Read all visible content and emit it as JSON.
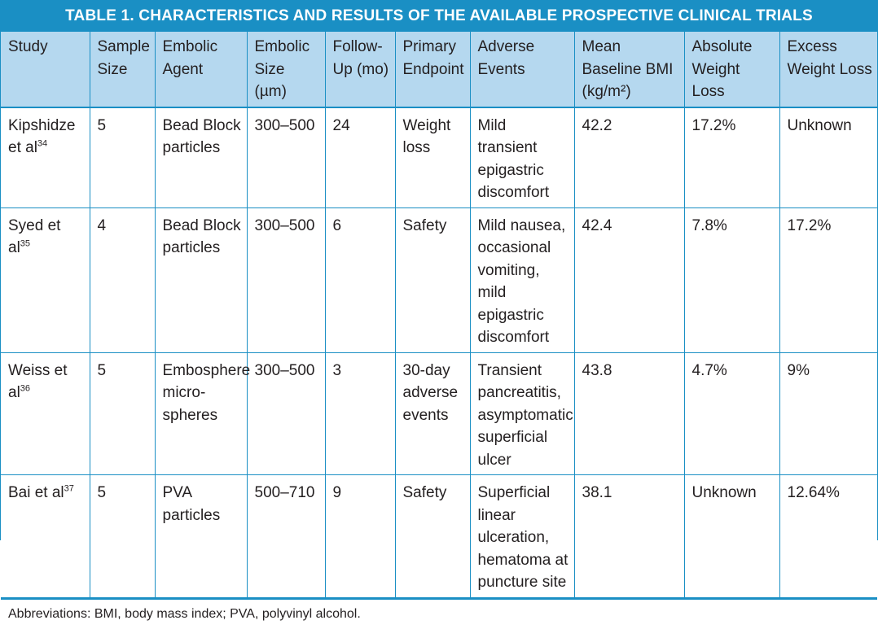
{
  "table": {
    "title": "TABLE 1.  CHARACTERISTICS AND RESULTS OF THE AVAILABLE PROSPECTIVE CLINICAL TRIALS",
    "headers": [
      "Study",
      "Sample Size",
      "Embolic Agent",
      "Embolic Size (µm)",
      "Follow-Up (mo)",
      "Primary Endpoint",
      "Adverse Events",
      "Mean Baseline BMI (kg/m²)",
      "Absolute Weight Loss",
      "Excess Weight Loss"
    ],
    "rows": [
      {
        "study": "Kipshidze et al",
        "ref": "34",
        "sample_size": "5",
        "embolic_agent": "Bead Block particles",
        "embolic_size": "300–500",
        "follow_up": "24",
        "primary_endpoint": "Weight loss",
        "adverse_events": "Mild transient epigastric discomfort",
        "mean_bmi": "42.2",
        "absolute_weight_loss": "17.2%",
        "excess_weight_loss": "Unknown"
      },
      {
        "study": "Syed et al",
        "ref": "35",
        "sample_size": "4",
        "embolic_agent": "Bead Block particles",
        "embolic_size": "300–500",
        "follow_up": "6",
        "primary_endpoint": "Safety",
        "adverse_events": "Mild nausea, occasional vomiting, mild epigastric discomfort",
        "mean_bmi": "42.4",
        "absolute_weight_loss": "7.8%",
        "excess_weight_loss": "17.2%"
      },
      {
        "study": "Weiss et al",
        "ref": "36",
        "sample_size": "5",
        "embolic_agent": "Embosphere micro-spheres",
        "embolic_size": "300–500",
        "follow_up": "3",
        "primary_endpoint": "30-day adverse events",
        "adverse_events": "Transient pancreatitis, asymptomatic superficial ulcer",
        "mean_bmi": "43.8",
        "absolute_weight_loss": "4.7%",
        "excess_weight_loss": "9%"
      },
      {
        "study": "Bai et al",
        "ref": "37",
        "sample_size": "5",
        "embolic_agent": "PVA particles",
        "embolic_size": "500–710",
        "follow_up": "9",
        "primary_endpoint": "Safety",
        "adverse_events": "Superficial linear ulceration, hematoma at puncture site",
        "mean_bmi": "38.1",
        "absolute_weight_loss": "Unknown",
        "excess_weight_loss": "12.64%"
      }
    ],
    "footnote": "Abbreviations: BMI, body mass index; PVA, polyvinyl alcohol."
  },
  "colors": {
    "accent": "#1a8fc4",
    "header_fill": "#b5d8ef"
  }
}
